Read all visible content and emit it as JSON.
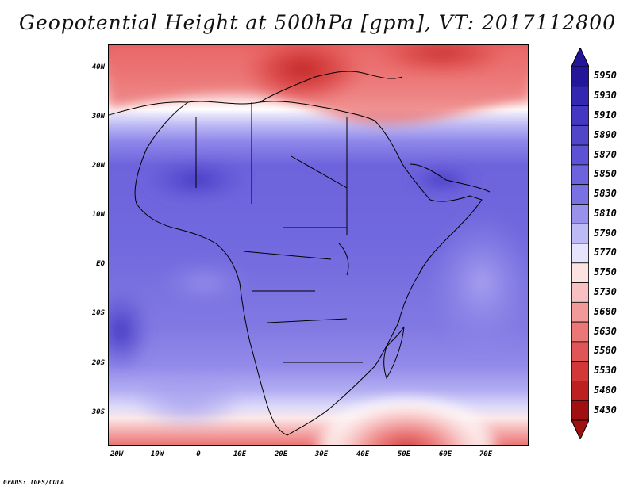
{
  "title": "Geopotential Height at 500hPa [gpm], VT: 2017112800",
  "footer": "GrADS: IGES/COLA",
  "map": {
    "lat_labels": [
      "40N",
      "30N",
      "20N",
      "10N",
      "EQ",
      "10S",
      "20S",
      "30S"
    ],
    "lon_labels": [
      "20W",
      "10W",
      "0",
      "10E",
      "20E",
      "30E",
      "40E",
      "50E",
      "60E",
      "70E"
    ],
    "lon_range": [
      -22,
      80
    ],
    "lat_range": [
      -37,
      45
    ],
    "field": "geopotential height",
    "level_hpa": 500,
    "units": "gpm"
  },
  "colorbar": {
    "levels": [
      "5950",
      "5930",
      "5910",
      "5890",
      "5870",
      "5850",
      "5830",
      "5810",
      "5790",
      "5770",
      "5750",
      "5730",
      "5680",
      "5630",
      "5580",
      "5530",
      "5480",
      "5430"
    ],
    "colors": [
      "#24169a",
      "#3326b0",
      "#4438c2",
      "#5246c8",
      "#5e52d4",
      "#6d63dc",
      "#7a72e2",
      "#9992ec",
      "#bebaf5",
      "#e6e4fc",
      "#fde2e2",
      "#f8c0c0",
      "#f29a9a",
      "#eb7777",
      "#e05555",
      "#d33838",
      "#bd2020",
      "#a01010"
    ]
  }
}
